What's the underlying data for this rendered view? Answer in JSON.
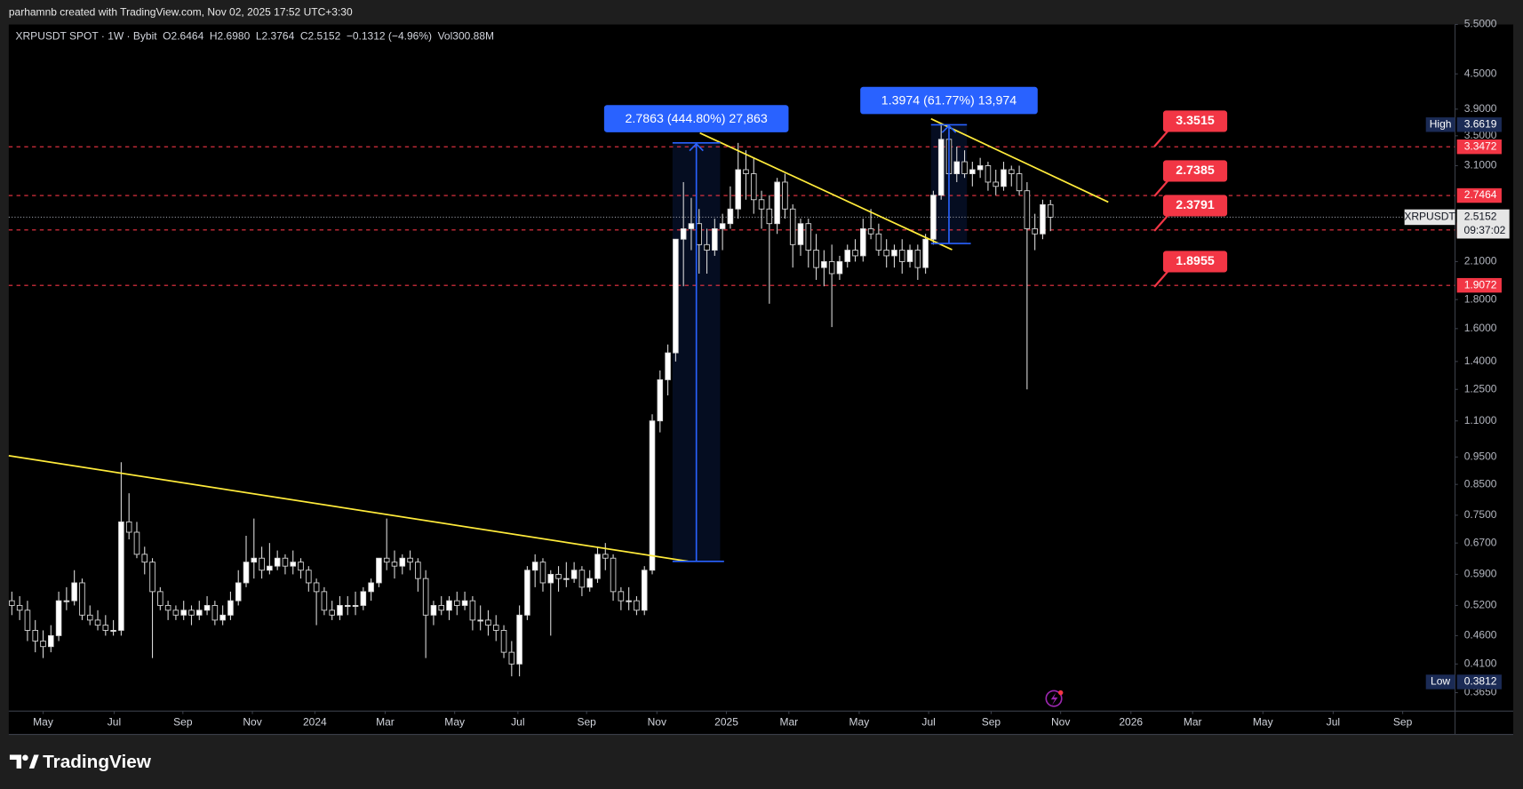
{
  "page": {
    "header": "parhamnb created with TradingView.com, Nov 02, 2025 17:52 UTC+3:30",
    "brand": "TradingView"
  },
  "chart_data": {
    "type": "candlestick",
    "symbol_info": [
      "XRPUSDT SPOT · 1W · Bybit",
      "O2.6464",
      "H2.6980",
      "L2.3764",
      "C2.5152",
      "−0.1312 (−4.96%)",
      "Vol300.88M"
    ],
    "log": true,
    "grid": false,
    "up_color": "#ffffff",
    "down_color": "#000000",
    "ylim": [
      0.3386,
      5.5
    ],
    "yticks": [
      {
        "value": 5.5,
        "label": "5.5000"
      },
      {
        "value": 4.5,
        "label": "4.5000"
      },
      {
        "value": 3.9,
        "label": "3.9000"
      },
      {
        "value": 3.5,
        "label": "3.5000"
      },
      {
        "value": 3.1,
        "label": "3.1000"
      },
      {
        "value": 2.1,
        "label": "2.1000"
      },
      {
        "value": 1.8,
        "label": "1.8000"
      },
      {
        "value": 1.6,
        "label": "1.6000"
      },
      {
        "value": 1.4,
        "label": "1.4000"
      },
      {
        "value": 1.25,
        "label": "1.2500"
      },
      {
        "value": 1.1,
        "label": "1.1000"
      },
      {
        "value": 0.95,
        "label": "0.9500"
      },
      {
        "value": 0.85,
        "label": "0.8500"
      },
      {
        "value": 0.75,
        "label": "0.7500"
      },
      {
        "value": 0.67,
        "label": "0.6700"
      },
      {
        "value": 0.59,
        "label": "0.5900"
      },
      {
        "value": 0.52,
        "label": "0.5200"
      },
      {
        "value": 0.46,
        "label": "0.4600"
      },
      {
        "value": 0.41,
        "label": "0.4100"
      },
      {
        "value": 0.365,
        "label": "0.3650"
      }
    ],
    "xlim": [
      -0.4,
      184.8
    ],
    "xticks": [
      {
        "value": 4.0,
        "label": "May"
      },
      {
        "value": 13.1,
        "label": "Jul"
      },
      {
        "value": 21.9,
        "label": "Sep"
      },
      {
        "value": 30.8,
        "label": "Nov"
      },
      {
        "value": 38.8,
        "label": "2024"
      },
      {
        "value": 47.8,
        "label": "Mar"
      },
      {
        "value": 56.7,
        "label": "May"
      },
      {
        "value": 64.8,
        "label": "Jul"
      },
      {
        "value": 73.6,
        "label": "Sep"
      },
      {
        "value": 82.6,
        "label": "Nov"
      },
      {
        "value": 91.5,
        "label": "2025"
      },
      {
        "value": 99.5,
        "label": "Mar"
      },
      {
        "value": 108.5,
        "label": "May"
      },
      {
        "value": 117.4,
        "label": "Jul"
      },
      {
        "value": 125.4,
        "label": "Sep"
      },
      {
        "value": 134.3,
        "label": "Nov"
      },
      {
        "value": 143.3,
        "label": "2026"
      },
      {
        "value": 151.2,
        "label": "Mar"
      },
      {
        "value": 160.2,
        "label": "May"
      },
      {
        "value": 169.2,
        "label": "Jul"
      },
      {
        "value": 178.1,
        "label": "Sep"
      }
    ],
    "ohlc": [
      [
        0.53,
        0.55,
        0.5,
        0.52
      ],
      [
        0.52,
        0.54,
        0.49,
        0.51
      ],
      [
        0.51,
        0.53,
        0.45,
        0.47
      ],
      [
        0.47,
        0.49,
        0.43,
        0.45
      ],
      [
        0.45,
        0.47,
        0.42,
        0.44
      ],
      [
        0.44,
        0.48,
        0.43,
        0.46
      ],
      [
        0.46,
        0.55,
        0.45,
        0.53
      ],
      [
        0.53,
        0.56,
        0.51,
        0.53
      ],
      [
        0.53,
        0.6,
        0.52,
        0.57
      ],
      [
        0.57,
        0.58,
        0.49,
        0.5
      ],
      [
        0.5,
        0.52,
        0.48,
        0.49
      ],
      [
        0.49,
        0.51,
        0.47,
        0.48
      ],
      [
        0.48,
        0.5,
        0.46,
        0.47
      ],
      [
        0.47,
        0.49,
        0.46,
        0.47
      ],
      [
        0.47,
        0.93,
        0.46,
        0.73
      ],
      [
        0.73,
        0.82,
        0.68,
        0.7
      ],
      [
        0.7,
        0.73,
        0.63,
        0.64
      ],
      [
        0.64,
        0.66,
        0.59,
        0.62
      ],
      [
        0.62,
        0.63,
        0.42,
        0.55
      ],
      [
        0.55,
        0.56,
        0.51,
        0.52
      ],
      [
        0.52,
        0.53,
        0.49,
        0.51
      ],
      [
        0.51,
        0.52,
        0.49,
        0.5
      ],
      [
        0.5,
        0.53,
        0.49,
        0.51
      ],
      [
        0.51,
        0.52,
        0.48,
        0.5
      ],
      [
        0.5,
        0.53,
        0.49,
        0.51
      ],
      [
        0.51,
        0.54,
        0.5,
        0.52
      ],
      [
        0.52,
        0.53,
        0.48,
        0.49
      ],
      [
        0.49,
        0.52,
        0.48,
        0.5
      ],
      [
        0.5,
        0.55,
        0.49,
        0.53
      ],
      [
        0.53,
        0.6,
        0.52,
        0.57
      ],
      [
        0.57,
        0.69,
        0.56,
        0.62
      ],
      [
        0.62,
        0.74,
        0.58,
        0.63
      ],
      [
        0.63,
        0.66,
        0.58,
        0.6
      ],
      [
        0.6,
        0.67,
        0.59,
        0.61
      ],
      [
        0.61,
        0.65,
        0.6,
        0.63
      ],
      [
        0.63,
        0.64,
        0.59,
        0.61
      ],
      [
        0.61,
        0.65,
        0.59,
        0.62
      ],
      [
        0.62,
        0.63,
        0.58,
        0.6
      ],
      [
        0.6,
        0.61,
        0.55,
        0.57
      ],
      [
        0.57,
        0.58,
        0.48,
        0.55
      ],
      [
        0.55,
        0.56,
        0.5,
        0.51
      ],
      [
        0.51,
        0.53,
        0.49,
        0.5
      ],
      [
        0.5,
        0.54,
        0.49,
        0.52
      ],
      [
        0.52,
        0.54,
        0.5,
        0.52
      ],
      [
        0.52,
        0.55,
        0.5,
        0.52
      ],
      [
        0.52,
        0.56,
        0.51,
        0.55
      ],
      [
        0.55,
        0.58,
        0.53,
        0.57
      ],
      [
        0.57,
        0.63,
        0.56,
        0.63
      ],
      [
        0.63,
        0.74,
        0.6,
        0.62
      ],
      [
        0.62,
        0.65,
        0.58,
        0.61
      ],
      [
        0.61,
        0.64,
        0.59,
        0.63
      ],
      [
        0.63,
        0.65,
        0.6,
        0.62
      ],
      [
        0.62,
        0.63,
        0.55,
        0.58
      ],
      [
        0.58,
        0.6,
        0.42,
        0.5
      ],
      [
        0.5,
        0.53,
        0.48,
        0.52
      ],
      [
        0.52,
        0.54,
        0.5,
        0.51
      ],
      [
        0.51,
        0.54,
        0.49,
        0.53
      ],
      [
        0.53,
        0.55,
        0.5,
        0.52
      ],
      [
        0.52,
        0.55,
        0.51,
        0.53
      ],
      [
        0.53,
        0.54,
        0.47,
        0.49
      ],
      [
        0.49,
        0.52,
        0.47,
        0.49
      ],
      [
        0.49,
        0.51,
        0.46,
        0.48
      ],
      [
        0.48,
        0.5,
        0.45,
        0.47
      ],
      [
        0.47,
        0.48,
        0.42,
        0.43
      ],
      [
        0.43,
        0.45,
        0.39,
        0.41
      ],
      [
        0.41,
        0.52,
        0.39,
        0.5
      ],
      [
        0.5,
        0.61,
        0.49,
        0.6
      ],
      [
        0.6,
        0.64,
        0.56,
        0.62
      ],
      [
        0.62,
        0.63,
        0.55,
        0.57
      ],
      [
        0.57,
        0.6,
        0.46,
        0.59
      ],
      [
        0.59,
        0.61,
        0.55,
        0.58
      ],
      [
        0.58,
        0.62,
        0.56,
        0.58
      ],
      [
        0.58,
        0.62,
        0.57,
        0.6
      ],
      [
        0.6,
        0.61,
        0.54,
        0.56
      ],
      [
        0.56,
        0.6,
        0.55,
        0.58
      ],
      [
        0.58,
        0.66,
        0.57,
        0.64
      ],
      [
        0.64,
        0.67,
        0.6,
        0.63
      ],
      [
        0.63,
        0.64,
        0.53,
        0.55
      ],
      [
        0.55,
        0.56,
        0.51,
        0.53
      ],
      [
        0.53,
        0.56,
        0.51,
        0.53
      ],
      [
        0.53,
        0.54,
        0.5,
        0.51
      ],
      [
        0.51,
        0.61,
        0.5,
        0.6
      ],
      [
        0.6,
        1.13,
        0.59,
        1.1
      ],
      [
        1.1,
        1.35,
        1.05,
        1.3
      ],
      [
        1.3,
        1.5,
        1.22,
        1.45
      ],
      [
        1.45,
        2.3,
        1.4,
        2.3
      ],
      [
        2.3,
        2.9,
        1.9,
        2.4
      ],
      [
        2.4,
        2.72,
        2.2,
        2.45
      ],
      [
        2.45,
        2.6,
        2.0,
        2.25
      ],
      [
        2.25,
        2.4,
        2.0,
        2.2
      ],
      [
        2.2,
        2.5,
        2.15,
        2.4
      ],
      [
        2.4,
        2.55,
        2.2,
        2.45
      ],
      [
        2.45,
        2.85,
        2.4,
        2.6
      ],
      [
        2.6,
        3.4,
        2.5,
        3.05
      ],
      [
        3.05,
        3.3,
        2.7,
        3.0
      ],
      [
        3.0,
        3.2,
        2.55,
        2.7
      ],
      [
        2.7,
        2.8,
        2.4,
        2.6
      ],
      [
        2.6,
        2.75,
        1.77,
        2.45
      ],
      [
        2.45,
        2.95,
        2.35,
        2.9
      ],
      [
        2.9,
        3.0,
        2.5,
        2.6
      ],
      [
        2.6,
        2.65,
        2.05,
        2.25
      ],
      [
        2.25,
        2.5,
        2.15,
        2.45
      ],
      [
        2.45,
        2.5,
        2.05,
        2.2
      ],
      [
        2.2,
        2.35,
        1.95,
        2.05
      ],
      [
        2.05,
        2.2,
        1.9,
        2.1
      ],
      [
        2.1,
        2.25,
        1.61,
        2.0
      ],
      [
        2.0,
        2.15,
        1.95,
        2.1
      ],
      [
        2.1,
        2.25,
        2.05,
        2.2
      ],
      [
        2.2,
        2.3,
        2.1,
        2.15
      ],
      [
        2.15,
        2.5,
        2.1,
        2.4
      ],
      [
        2.4,
        2.6,
        2.3,
        2.35
      ],
      [
        2.35,
        2.45,
        2.15,
        2.2
      ],
      [
        2.2,
        2.3,
        2.05,
        2.15
      ],
      [
        2.15,
        2.25,
        2.05,
        2.2
      ],
      [
        2.2,
        2.3,
        2.0,
        2.1
      ],
      [
        2.1,
        2.25,
        2.05,
        2.2
      ],
      [
        2.2,
        2.25,
        1.95,
        2.05
      ],
      [
        2.05,
        2.35,
        2.0,
        2.3
      ],
      [
        2.3,
        2.8,
        2.25,
        2.75
      ],
      [
        2.75,
        3.66,
        2.7,
        3.45
      ],
      [
        3.45,
        3.55,
        2.95,
        3.0
      ],
      [
        3.0,
        3.35,
        2.9,
        3.15
      ],
      [
        3.15,
        3.3,
        2.95,
        3.0
      ],
      [
        3.0,
        3.15,
        2.85,
        3.05
      ],
      [
        3.05,
        3.2,
        2.95,
        3.1
      ],
      [
        3.1,
        3.15,
        2.8,
        2.9
      ],
      [
        2.9,
        3.05,
        2.75,
        2.85
      ],
      [
        2.85,
        3.15,
        2.8,
        3.05
      ],
      [
        3.05,
        3.1,
        2.85,
        3.0
      ],
      [
        3.0,
        3.1,
        2.75,
        2.8
      ],
      [
        2.8,
        2.9,
        1.25,
        2.4
      ],
      [
        2.4,
        2.55,
        2.2,
        2.35
      ],
      [
        2.35,
        2.7,
        2.3,
        2.6464
      ],
      [
        2.6464,
        2.698,
        2.3764,
        2.5152
      ]
    ],
    "levels": [
      3.3472,
      2.7464,
      2.3884,
      1.9072
    ],
    "level_color": "#f23645",
    "callouts": [
      {
        "value": 3.3515,
        "x": 146.3
      },
      {
        "value": 2.7385,
        "x": 146.3
      },
      {
        "value": 2.3791,
        "x": 146.3
      },
      {
        "value": 1.8955,
        "x": 146.3
      }
    ],
    "callout_color": "#f23645",
    "trendlines": [
      {
        "x": [
          -0.4,
          86.6
        ],
        "y": [
          0.955,
          0.622
        ]
      },
      {
        "x": [
          88.1,
          120.4
        ],
        "y": [
          3.54,
          2.204
        ]
      },
      {
        "x": [
          117.7,
          140.4
        ],
        "y": [
          3.75,
          2.674
        ]
      }
    ],
    "trendline_color": "#ffeb3b",
    "measurements": [
      {
        "label": "2.7863 (444.80%) 27,863",
        "x": [
          84.6,
          90.7
        ],
        "y": [
          0.622,
          3.4
        ]
      },
      {
        "label": "1.3974 (61.77%) 13,974",
        "x": [
          117.7,
          122.3
        ],
        "y": [
          2.26,
          3.66
        ]
      }
    ],
    "measure_color": "#2962ff",
    "high": {
      "label": "High",
      "value": 3.6619
    },
    "low": {
      "label": "Low",
      "value": 0.3812
    },
    "extreme_color": "#1b2b55",
    "current": {
      "name": "XRPUSDT",
      "value": 2.5152,
      "countdown": "09:37:02"
    }
  }
}
